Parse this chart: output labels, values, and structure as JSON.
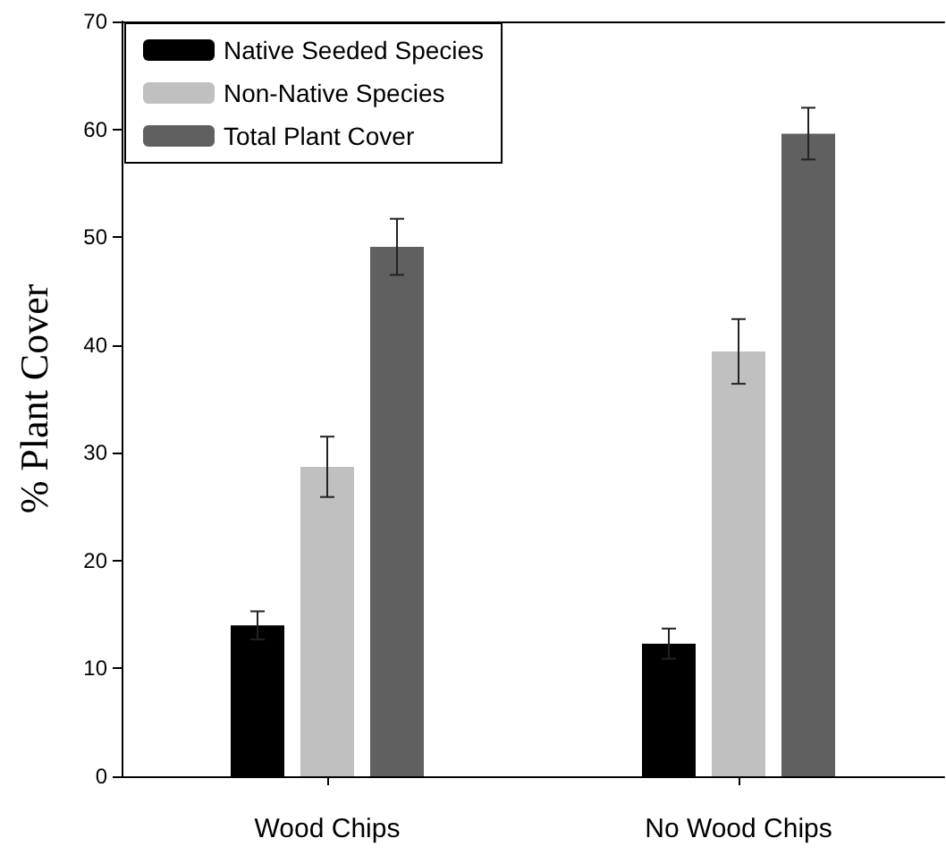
{
  "chart_data": {
    "type": "bar",
    "ylabel": "% Plant Cover",
    "categories": [
      "Wood Chips",
      "No Wood Chips"
    ],
    "series": [
      {
        "name": "Native Seeded Species",
        "color": "#000000",
        "values": [
          14.0,
          12.3
        ],
        "errors": [
          1.3,
          1.4
        ]
      },
      {
        "name": "Non-Native Species",
        "color": "#c0c0c0",
        "values": [
          28.7,
          39.4
        ],
        "errors": [
          2.8,
          3.0
        ]
      },
      {
        "name": "Total Plant Cover",
        "color": "#606060",
        "values": [
          49.1,
          59.6
        ],
        "errors": [
          2.6,
          2.4
        ]
      }
    ],
    "ylim": [
      0,
      70
    ],
    "yticks": [
      0,
      10,
      20,
      30,
      40,
      50,
      60,
      70
    ],
    "grid": false,
    "legend": "top left"
  }
}
